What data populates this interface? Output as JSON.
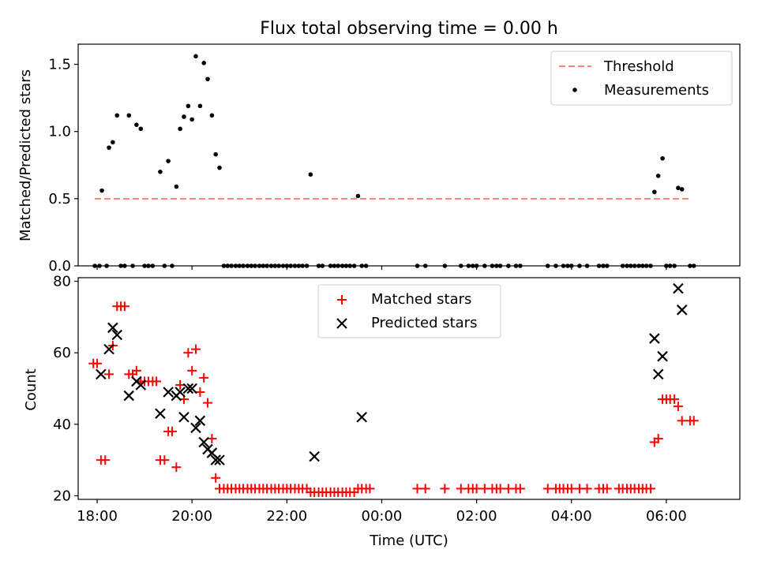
{
  "figure": {
    "title": "Flux total observing time = 0.00 h"
  },
  "chart_data": [
    {
      "type": "scatter",
      "x_unit": "hours since 18:00 UTC",
      "ylabel": "Matched/Predicted stars",
      "ylim": [
        0,
        1.65
      ],
      "yticks": [
        0.0,
        0.5,
        1.0,
        1.5
      ],
      "ytick_labels": [
        "0.0",
        "0.5",
        "1.0",
        "1.5"
      ],
      "xlim": [
        -0.4,
        13.55
      ],
      "xticks": [
        0,
        2,
        4,
        6,
        8,
        10,
        12
      ],
      "xtick_labels": [
        "18:00",
        "20:00",
        "22:00",
        "00:00",
        "02:00",
        "04:00",
        "06:00"
      ],
      "show_xtick_labels": false,
      "legend": {
        "placement": "top-right",
        "entries": [
          "Threshold",
          "Measurements"
        ]
      },
      "threshold": {
        "name": "Threshold",
        "y": 0.5,
        "x_range": [
          -0.05,
          12.5
        ],
        "color": "#ff7f7f"
      },
      "series": [
        {
          "name": "Measurements",
          "color": "#000000",
          "points": [
            [
              -0.05,
              0
            ],
            [
              0.05,
              0
            ],
            [
              0.1,
              0.56
            ],
            [
              0.2,
              0
            ],
            [
              0.25,
              0.88
            ],
            [
              0.33,
              0.92
            ],
            [
              0.42,
              1.12
            ],
            [
              0.5,
              0
            ],
            [
              0.58,
              0
            ],
            [
              0.67,
              1.12
            ],
            [
              0.75,
              0
            ],
            [
              0.83,
              1.05
            ],
            [
              0.92,
              1.02
            ],
            [
              1.0,
              0
            ],
            [
              1.08,
              0
            ],
            [
              1.17,
              0
            ],
            [
              1.33,
              0.7
            ],
            [
              1.42,
              0
            ],
            [
              1.5,
              0.78
            ],
            [
              1.58,
              0
            ],
            [
              1.67,
              0.59
            ],
            [
              1.75,
              1.02
            ],
            [
              1.83,
              1.11
            ],
            [
              1.92,
              1.19
            ],
            [
              2.0,
              1.09
            ],
            [
              2.08,
              1.56
            ],
            [
              2.17,
              1.19
            ],
            [
              2.25,
              1.51
            ],
            [
              2.33,
              1.39
            ],
            [
              2.42,
              1.12
            ],
            [
              2.5,
              0.83
            ],
            [
              2.58,
              0.73
            ],
            [
              2.67,
              0
            ],
            [
              2.75,
              0
            ],
            [
              2.83,
              0
            ],
            [
              2.92,
              0
            ],
            [
              3.0,
              0
            ],
            [
              3.08,
              0
            ],
            [
              3.17,
              0
            ],
            [
              3.25,
              0
            ],
            [
              3.33,
              0
            ],
            [
              3.42,
              0
            ],
            [
              3.5,
              0
            ],
            [
              3.58,
              0
            ],
            [
              3.67,
              0
            ],
            [
              3.75,
              0
            ],
            [
              3.83,
              0
            ],
            [
              3.92,
              0
            ],
            [
              4.0,
              0
            ],
            [
              4.08,
              0
            ],
            [
              4.17,
              0
            ],
            [
              4.25,
              0
            ],
            [
              4.33,
              0
            ],
            [
              4.42,
              0
            ],
            [
              4.5,
              0.68
            ],
            [
              4.67,
              0
            ],
            [
              4.75,
              0
            ],
            [
              4.92,
              0
            ],
            [
              5.0,
              0
            ],
            [
              5.08,
              0
            ],
            [
              5.17,
              0
            ],
            [
              5.25,
              0
            ],
            [
              5.33,
              0
            ],
            [
              5.42,
              0
            ],
            [
              5.5,
              0.52
            ],
            [
              5.58,
              0
            ],
            [
              5.67,
              0
            ],
            [
              6.75,
              0
            ],
            [
              6.92,
              0
            ],
            [
              7.33,
              0
            ],
            [
              7.67,
              0
            ],
            [
              7.83,
              0
            ],
            [
              7.92,
              0
            ],
            [
              8.0,
              0
            ],
            [
              8.17,
              0
            ],
            [
              8.33,
              0
            ],
            [
              8.42,
              0
            ],
            [
              8.5,
              0
            ],
            [
              8.67,
              0
            ],
            [
              8.83,
              0
            ],
            [
              8.92,
              0
            ],
            [
              9.5,
              0
            ],
            [
              9.67,
              0
            ],
            [
              9.83,
              0
            ],
            [
              9.92,
              0
            ],
            [
              10.0,
              0
            ],
            [
              10.17,
              0
            ],
            [
              10.33,
              0
            ],
            [
              10.58,
              0
            ],
            [
              10.67,
              0
            ],
            [
              10.75,
              0
            ],
            [
              11.08,
              0
            ],
            [
              11.17,
              0
            ],
            [
              11.25,
              0
            ],
            [
              11.33,
              0
            ],
            [
              11.42,
              0
            ],
            [
              11.5,
              0
            ],
            [
              11.58,
              0
            ],
            [
              11.67,
              0
            ],
            [
              11.75,
              0.55
            ],
            [
              11.83,
              0.67
            ],
            [
              11.92,
              0.8
            ],
            [
              12.0,
              0
            ],
            [
              12.08,
              0
            ],
            [
              12.17,
              0
            ],
            [
              12.25,
              0.58
            ],
            [
              12.33,
              0.57
            ],
            [
              12.5,
              0
            ],
            [
              12.58,
              0
            ]
          ]
        }
      ]
    },
    {
      "type": "scatter",
      "x_unit": "hours since 18:00 UTC",
      "xlabel": "Time (UTC)",
      "ylabel": "Count",
      "ylim": [
        19,
        81
      ],
      "yticks": [
        20,
        40,
        60,
        80
      ],
      "ytick_labels": [
        "20",
        "40",
        "60",
        "80"
      ],
      "xlim": [
        -0.4,
        13.55
      ],
      "xticks": [
        0,
        2,
        4,
        6,
        8,
        10,
        12
      ],
      "xtick_labels": [
        "18:00",
        "20:00",
        "22:00",
        "00:00",
        "02:00",
        "04:00",
        "06:00"
      ],
      "show_xtick_labels": true,
      "legend": {
        "placement": "upper center",
        "entries": [
          "Matched stars",
          "Predicted stars"
        ]
      },
      "series": [
        {
          "name": "Matched stars",
          "marker": "plus",
          "color": "#ff0000",
          "points": [
            [
              -0.08,
              57
            ],
            [
              0.0,
              57
            ],
            [
              0.08,
              30
            ],
            [
              0.17,
              30
            ],
            [
              0.25,
              54
            ],
            [
              0.33,
              62
            ],
            [
              0.42,
              73
            ],
            [
              0.5,
              73
            ],
            [
              0.58,
              73
            ],
            [
              0.67,
              54
            ],
            [
              0.75,
              54
            ],
            [
              0.83,
              55
            ],
            [
              0.92,
              52
            ],
            [
              1.0,
              52
            ],
            [
              1.08,
              52
            ],
            [
              1.17,
              52
            ],
            [
              1.25,
              52
            ],
            [
              1.33,
              30
            ],
            [
              1.42,
              30
            ],
            [
              1.5,
              38
            ],
            [
              1.58,
              38
            ],
            [
              1.67,
              28
            ],
            [
              1.75,
              51
            ],
            [
              1.83,
              47
            ],
            [
              1.92,
              60
            ],
            [
              2.0,
              55
            ],
            [
              2.08,
              61
            ],
            [
              2.17,
              49
            ],
            [
              2.25,
              53
            ],
            [
              2.33,
              46
            ],
            [
              2.42,
              36
            ],
            [
              2.5,
              25
            ],
            [
              2.58,
              22
            ],
            [
              2.67,
              22
            ],
            [
              2.75,
              22
            ],
            [
              2.83,
              22
            ],
            [
              2.92,
              22
            ],
            [
              3.0,
              22
            ],
            [
              3.08,
              22
            ],
            [
              3.17,
              22
            ],
            [
              3.25,
              22
            ],
            [
              3.33,
              22
            ],
            [
              3.42,
              22
            ],
            [
              3.5,
              22
            ],
            [
              3.58,
              22
            ],
            [
              3.67,
              22
            ],
            [
              3.75,
              22
            ],
            [
              3.83,
              22
            ],
            [
              3.92,
              22
            ],
            [
              4.0,
              22
            ],
            [
              4.08,
              22
            ],
            [
              4.17,
              22
            ],
            [
              4.25,
              22
            ],
            [
              4.33,
              22
            ],
            [
              4.42,
              22
            ],
            [
              4.5,
              21
            ],
            [
              4.58,
              21
            ],
            [
              4.67,
              21
            ],
            [
              4.75,
              21
            ],
            [
              4.83,
              21
            ],
            [
              4.92,
              21
            ],
            [
              5.0,
              21
            ],
            [
              5.08,
              21
            ],
            [
              5.17,
              21
            ],
            [
              5.25,
              21
            ],
            [
              5.33,
              21
            ],
            [
              5.42,
              21
            ],
            [
              5.5,
              22
            ],
            [
              5.58,
              22
            ],
            [
              5.67,
              22
            ],
            [
              5.75,
              22
            ],
            [
              6.75,
              22
            ],
            [
              6.92,
              22
            ],
            [
              7.33,
              22
            ],
            [
              7.67,
              22
            ],
            [
              7.83,
              22
            ],
            [
              7.92,
              22
            ],
            [
              8.0,
              22
            ],
            [
              8.17,
              22
            ],
            [
              8.33,
              22
            ],
            [
              8.42,
              22
            ],
            [
              8.5,
              22
            ],
            [
              8.67,
              22
            ],
            [
              8.83,
              22
            ],
            [
              8.92,
              22
            ],
            [
              9.5,
              22
            ],
            [
              9.67,
              22
            ],
            [
              9.75,
              22
            ],
            [
              9.83,
              22
            ],
            [
              9.92,
              22
            ],
            [
              10.0,
              22
            ],
            [
              10.17,
              22
            ],
            [
              10.33,
              22
            ],
            [
              10.58,
              22
            ],
            [
              10.67,
              22
            ],
            [
              10.75,
              22
            ],
            [
              11.0,
              22
            ],
            [
              11.08,
              22
            ],
            [
              11.17,
              22
            ],
            [
              11.25,
              22
            ],
            [
              11.33,
              22
            ],
            [
              11.42,
              22
            ],
            [
              11.5,
              22
            ],
            [
              11.58,
              22
            ],
            [
              11.67,
              22
            ],
            [
              11.75,
              35
            ],
            [
              11.83,
              36
            ],
            [
              11.92,
              47
            ],
            [
              12.0,
              47
            ],
            [
              12.08,
              47
            ],
            [
              12.17,
              47
            ],
            [
              12.25,
              45
            ],
            [
              12.33,
              41
            ],
            [
              12.5,
              41
            ],
            [
              12.58,
              41
            ]
          ]
        },
        {
          "name": "Predicted stars",
          "marker": "x",
          "color": "#000000",
          "points": [
            [
              0.08,
              54
            ],
            [
              0.25,
              61
            ],
            [
              0.33,
              67
            ],
            [
              0.42,
              65
            ],
            [
              0.67,
              48
            ],
            [
              0.83,
              52
            ],
            [
              0.92,
              51
            ],
            [
              1.33,
              43
            ],
            [
              1.5,
              49
            ],
            [
              1.67,
              48
            ],
            [
              1.75,
              49
            ],
            [
              1.83,
              42
            ],
            [
              1.92,
              50
            ],
            [
              2.0,
              50
            ],
            [
              2.08,
              39
            ],
            [
              2.17,
              41
            ],
            [
              2.25,
              35
            ],
            [
              2.33,
              33
            ],
            [
              2.42,
              32
            ],
            [
              2.5,
              30
            ],
            [
              2.58,
              30
            ],
            [
              4.58,
              31
            ],
            [
              5.58,
              42
            ],
            [
              11.75,
              64
            ],
            [
              11.83,
              54
            ],
            [
              11.92,
              59
            ],
            [
              12.25,
              78
            ],
            [
              12.33,
              72
            ]
          ]
        }
      ]
    }
  ]
}
